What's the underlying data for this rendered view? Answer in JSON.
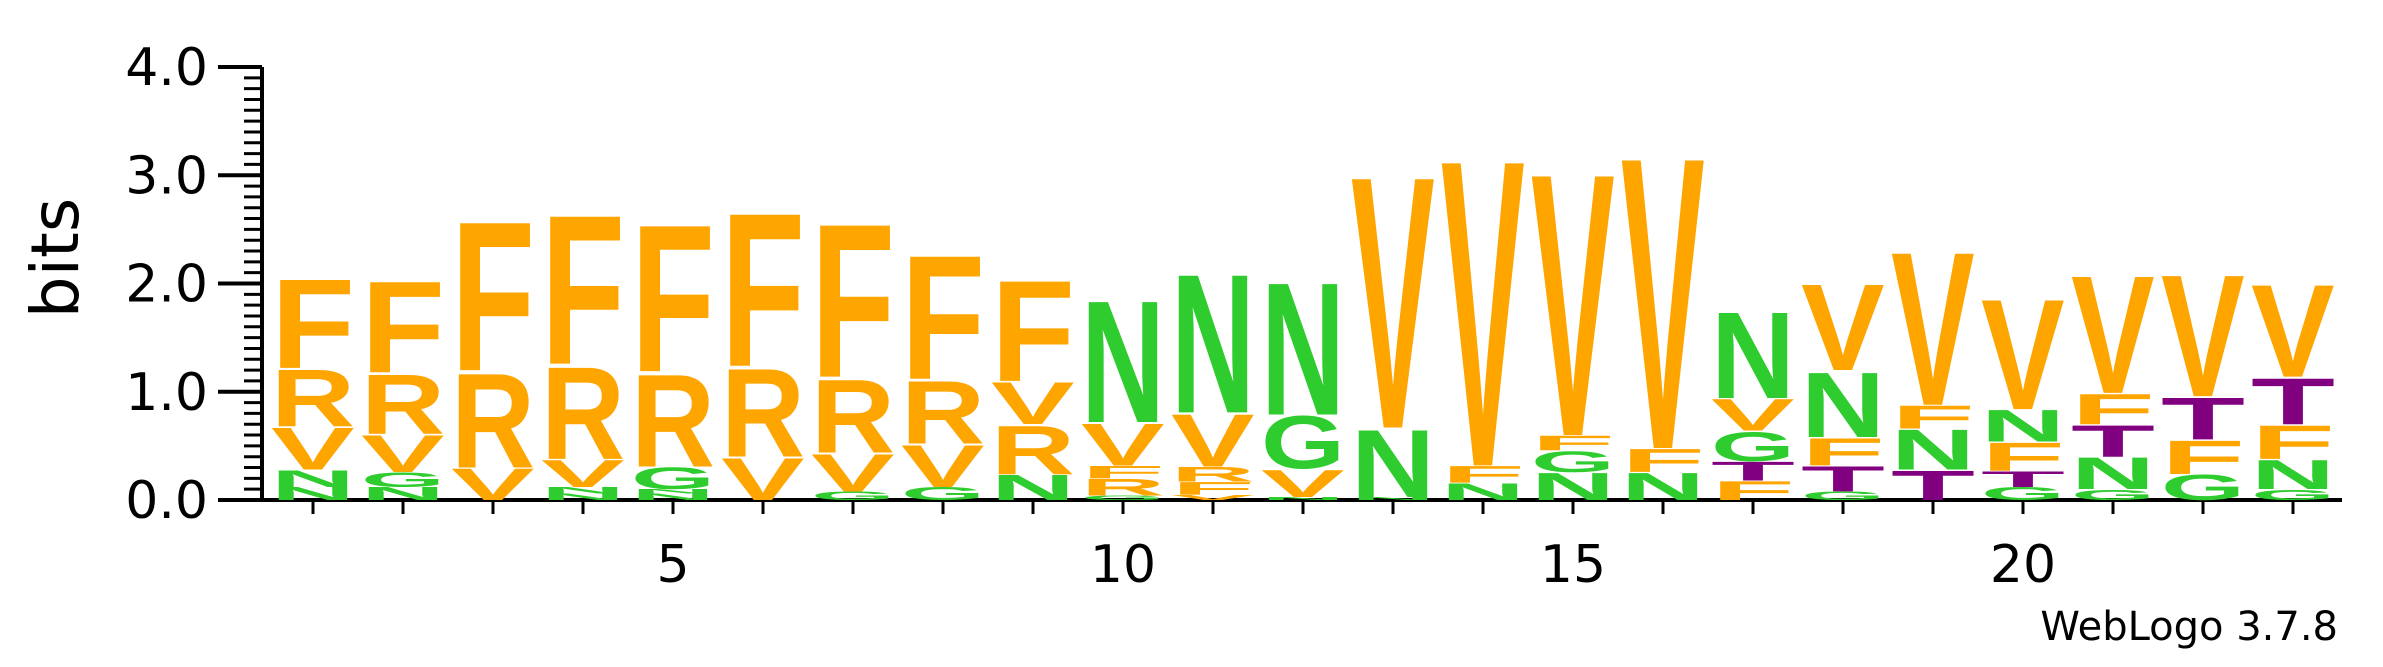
{
  "chart_data": {
    "type": "sequence_logo",
    "ylabel": "bits",
    "ylim": [
      0,
      4
    ],
    "y_ticks": [
      "0.0",
      "1.0",
      "2.0",
      "3.0",
      "4.0"
    ],
    "x_tick_labels": [
      "5",
      "10",
      "15",
      "20"
    ],
    "x_tick_label_positions": [
      5,
      10,
      15,
      20
    ],
    "footer": "WebLogo 3.7.8",
    "colors": {
      "F": "#FFA500",
      "R": "#FFA500",
      "V": "#FFA500",
      "G": "#2ECC2E",
      "N": "#2ECC2E",
      "T": "#800080"
    },
    "positions": [
      {
        "pos": 1,
        "stack": [
          [
            "N",
            0.12
          ],
          [
            "N",
            0.16
          ],
          [
            "V",
            0.4
          ],
          [
            "R",
            0.54
          ],
          [
            "F",
            0.85
          ]
        ]
      },
      {
        "pos": 2,
        "stack": [
          [
            "N",
            0.12
          ],
          [
            "G",
            0.14
          ],
          [
            "V",
            0.35
          ],
          [
            "R",
            0.57
          ],
          [
            "F",
            0.87
          ]
        ]
      },
      {
        "pos": 3,
        "stack": [
          [
            "V",
            0.3
          ],
          [
            "R",
            0.9
          ],
          [
            "F",
            1.42
          ]
        ]
      },
      {
        "pos": 4,
        "stack": [
          [
            "N",
            0.06
          ],
          [
            "N",
            0.06
          ],
          [
            "V",
            0.26
          ],
          [
            "R",
            0.88
          ],
          [
            "F",
            1.42
          ]
        ]
      },
      {
        "pos": 5,
        "stack": [
          [
            "N",
            0.06
          ],
          [
            "N",
            0.04
          ],
          [
            "G",
            0.21
          ],
          [
            "R",
            0.88
          ],
          [
            "F",
            1.4
          ]
        ]
      },
      {
        "pos": 6,
        "stack": [
          [
            "V",
            0.4
          ],
          [
            "R",
            0.84
          ],
          [
            "F",
            1.46
          ]
        ]
      },
      {
        "pos": 7,
        "stack": [
          [
            "G",
            0.08
          ],
          [
            "V",
            0.36
          ],
          [
            "R",
            0.7
          ],
          [
            "F",
            1.46
          ]
        ]
      },
      {
        "pos": 8,
        "stack": [
          [
            "G",
            0.12
          ],
          [
            "V",
            0.4
          ],
          [
            "R",
            0.6
          ],
          [
            "F",
            1.18
          ]
        ]
      },
      {
        "pos": 9,
        "stack": [
          [
            "N",
            0.24
          ],
          [
            "R",
            0.46
          ],
          [
            "V",
            0.4
          ],
          [
            "F",
            0.96
          ]
        ]
      },
      {
        "pos": 10,
        "stack": [
          [
            "G",
            0.04
          ],
          [
            "R",
            0.16
          ],
          [
            "F",
            0.12
          ],
          [
            "V",
            0.4
          ],
          [
            "N",
            1.16
          ]
        ]
      },
      {
        "pos": 11,
        "stack": [
          [
            "V",
            0.05
          ],
          [
            "F",
            0.12
          ],
          [
            "R",
            0.14
          ],
          [
            "V",
            0.5
          ],
          [
            "N",
            1.32
          ]
        ]
      },
      {
        "pos": 12,
        "stack": [
          [
            "N",
            0.03
          ],
          [
            "V",
            0.26
          ],
          [
            "G",
            0.5
          ],
          [
            "N",
            1.26
          ]
        ]
      },
      {
        "pos": 13,
        "stack": [
          [
            "N",
            0.03
          ],
          [
            "N",
            0.64
          ],
          [
            "V",
            2.4
          ]
        ]
      },
      {
        "pos": 14,
        "stack": [
          [
            "N",
            0.16
          ],
          [
            "F",
            0.16
          ],
          [
            "V",
            2.92
          ]
        ]
      },
      {
        "pos": 15,
        "stack": [
          [
            "N",
            0.26
          ],
          [
            "G",
            0.2
          ],
          [
            "F",
            0.14
          ],
          [
            "V",
            2.5
          ]
        ]
      },
      {
        "pos": 16,
        "stack": [
          [
            "N",
            0.26
          ],
          [
            "F",
            0.22
          ],
          [
            "V",
            2.78
          ]
        ]
      },
      {
        "pos": 17,
        "stack": [
          [
            "F",
            0.18
          ],
          [
            "T",
            0.18
          ],
          [
            "G",
            0.28
          ],
          [
            "V",
            0.3
          ],
          [
            "N",
            0.82
          ]
        ]
      },
      {
        "pos": 18,
        "stack": [
          [
            "G",
            0.08
          ],
          [
            "T",
            0.24
          ],
          [
            "F",
            0.26
          ],
          [
            "N",
            0.62
          ],
          [
            "V",
            0.82
          ]
        ]
      },
      {
        "pos": 19,
        "stack": [
          [
            "T",
            0.28
          ],
          [
            "N",
            0.38
          ],
          [
            "F",
            0.22
          ],
          [
            "V",
            1.46
          ]
        ]
      },
      {
        "pos": 20,
        "stack": [
          [
            "G",
            0.12
          ],
          [
            "T",
            0.15
          ],
          [
            "F",
            0.27
          ],
          [
            "N",
            0.3
          ],
          [
            "V",
            1.05
          ]
        ]
      },
      {
        "pos": 21,
        "stack": [
          [
            "G",
            0.1
          ],
          [
            "N",
            0.3
          ],
          [
            "T",
            0.3
          ],
          [
            "F",
            0.29
          ],
          [
            "V",
            1.12
          ]
        ]
      },
      {
        "pos": 22,
        "stack": [
          [
            "G",
            0.24
          ],
          [
            "F",
            0.32
          ],
          [
            "T",
            0.4
          ],
          [
            "V",
            1.16
          ]
        ]
      },
      {
        "pos": 23,
        "stack": [
          [
            "G",
            0.1
          ],
          [
            "N",
            0.28
          ],
          [
            "F",
            0.32
          ],
          [
            "T",
            0.44
          ],
          [
            "V",
            0.88
          ]
        ]
      }
    ]
  }
}
